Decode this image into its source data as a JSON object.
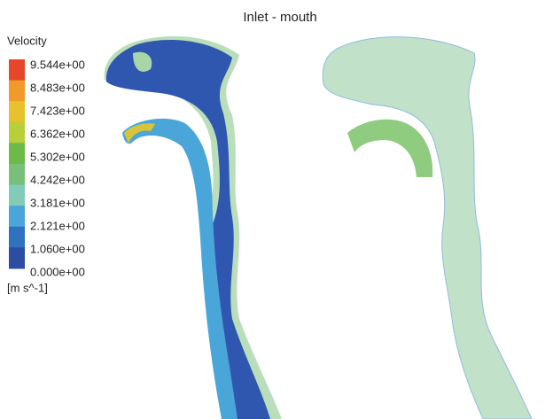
{
  "title": "Inlet - mouth",
  "legend": {
    "title": "Velocity",
    "labels": [
      "9.544e+00",
      "8.483e+00",
      "7.423e+00",
      "6.362e+00",
      "5.302e+00",
      "4.242e+00",
      "3.181e+00",
      "2.121e+00",
      "1.060e+00",
      "0.000e+00"
    ],
    "colors": [
      "#e8452a",
      "#f19a2a",
      "#e8c22c",
      "#b8cf3a",
      "#6cbb4a",
      "#78c07a",
      "#82cbb8",
      "#4aa6d9",
      "#2f72c0",
      "#2b4ea3"
    ],
    "unit": "[m s^-1]"
  }
}
